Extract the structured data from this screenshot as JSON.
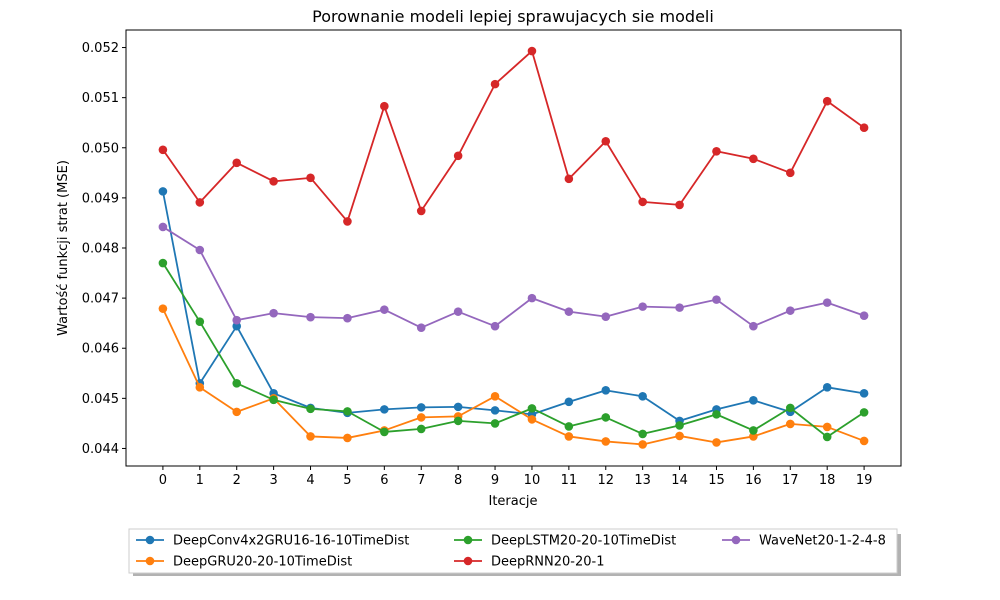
{
  "chart_data": {
    "type": "line",
    "title": "Porownanie modeli lepiej sprawujacych sie modeli",
    "xlabel": "Iteracje",
    "ylabel": "Wartość funkcji strat (MSE)",
    "xlim": [
      -1,
      20
    ],
    "ylim": [
      0.04365,
      0.05235
    ],
    "x": [
      0,
      1,
      2,
      3,
      4,
      5,
      6,
      7,
      8,
      9,
      10,
      11,
      12,
      13,
      14,
      15,
      16,
      17,
      18,
      19
    ],
    "x_ticks": [
      "0",
      "1",
      "2",
      "3",
      "4",
      "5",
      "6",
      "7",
      "8",
      "9",
      "10",
      "11",
      "12",
      "13",
      "14",
      "15",
      "16",
      "17",
      "18",
      "19"
    ],
    "y_ticks": [
      {
        "value": 0.044,
        "label": "0.044"
      },
      {
        "value": 0.045,
        "label": "0.045"
      },
      {
        "value": 0.046,
        "label": "0.046"
      },
      {
        "value": 0.047,
        "label": "0.047"
      },
      {
        "value": 0.048,
        "label": "0.048"
      },
      {
        "value": 0.049,
        "label": "0.049"
      },
      {
        "value": 0.05,
        "label": "0.050"
      },
      {
        "value": 0.051,
        "label": "0.051"
      },
      {
        "value": 0.052,
        "label": "0.052"
      }
    ],
    "grid": false,
    "legend_position": "bottom-center, outside plot, 3 columns, with shadow",
    "series": [
      {
        "name": "DeepConv4x2GRU16-16-10TimeDist",
        "color": "#1f77b4",
        "values": [
          0.04913,
          0.0453,
          0.04644,
          0.0451,
          0.04481,
          0.04471,
          0.04478,
          0.04482,
          0.04483,
          0.04476,
          0.04468,
          0.04493,
          0.04516,
          0.04504,
          0.04455,
          0.04478,
          0.04496,
          0.04473,
          0.04522,
          0.0451
        ]
      },
      {
        "name": "DeepGRU20-20-10TimeDist",
        "color": "#ff7f0e",
        "values": [
          0.04679,
          0.04522,
          0.04473,
          0.045,
          0.04424,
          0.04421,
          0.04436,
          0.04462,
          0.04464,
          0.04504,
          0.04458,
          0.04424,
          0.04414,
          0.04408,
          0.04425,
          0.04412,
          0.04424,
          0.04449,
          0.04443,
          0.04415
        ]
      },
      {
        "name": "DeepLSTM20-20-10TimeDist",
        "color": "#2ca02c",
        "values": [
          0.0477,
          0.04653,
          0.0453,
          0.04497,
          0.04479,
          0.04474,
          0.04433,
          0.04439,
          0.04455,
          0.0445,
          0.0448,
          0.04444,
          0.04462,
          0.04429,
          0.04446,
          0.04468,
          0.04436,
          0.04481,
          0.04423,
          0.04472
        ]
      },
      {
        "name": "DeepRNN20-20-1",
        "color": "#d62728",
        "values": [
          0.04996,
          0.04891,
          0.0497,
          0.04933,
          0.0494,
          0.04853,
          0.05083,
          0.04874,
          0.04984,
          0.05127,
          0.05193,
          0.04938,
          0.05013,
          0.04892,
          0.04886,
          0.04993,
          0.04978,
          0.0495,
          0.05093,
          0.0504
        ]
      },
      {
        "name": "WaveNet20-1-2-4-8",
        "color": "#9467bd",
        "values": [
          0.04842,
          0.04796,
          0.04656,
          0.0467,
          0.04662,
          0.0466,
          0.04677,
          0.04641,
          0.04673,
          0.04644,
          0.047,
          0.04673,
          0.04663,
          0.04683,
          0.04681,
          0.04697,
          0.04644,
          0.04675,
          0.04691,
          0.04665
        ]
      }
    ]
  }
}
